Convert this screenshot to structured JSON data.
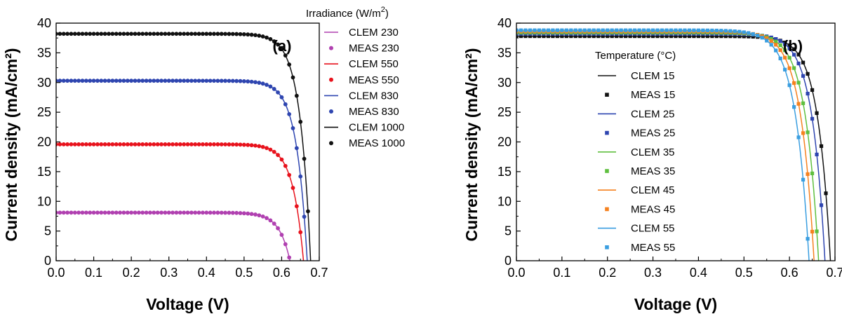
{
  "chart_data": [
    {
      "type": "scatter",
      "panel_label": "(a)",
      "xlabel": "Voltage (V)",
      "ylabel": "Current density (mA/cm²)",
      "xlim": [
        0,
        0.7
      ],
      "ylim": [
        0,
        40
      ],
      "xticks": [
        "0.0",
        "0.1",
        "0.2",
        "0.3",
        "0.4",
        "0.5",
        "0.6",
        "0.7"
      ],
      "yticks": [
        "0",
        "5",
        "10",
        "15",
        "20",
        "25",
        "30",
        "35",
        "40"
      ],
      "legend_title": "Irradiance (W/m",
      "legend_title_sup": "2",
      "legend_title_end": ")",
      "legend_position": "outside-right",
      "series": [
        {
          "name": "CLEM 230",
          "kind": "line",
          "color": "#b040b0",
          "isc": 8.1,
          "voc": 0.622,
          "k": 0.0285
        },
        {
          "name": "MEAS 230",
          "kind": "marker",
          "marker": "circle",
          "color": "#b040b0",
          "isc": 8.1,
          "voc": 0.622,
          "k": 0.0285
        },
        {
          "name": "CLEM 550",
          "kind": "line",
          "color": "#e8121c",
          "isc": 19.6,
          "voc": 0.658,
          "k": 0.0285
        },
        {
          "name": "MEAS 550",
          "kind": "marker",
          "marker": "circle",
          "color": "#e8121c",
          "isc": 19.6,
          "voc": 0.658,
          "k": 0.0285
        },
        {
          "name": "CLEM 830",
          "kind": "line",
          "color": "#2e45b0",
          "isc": 30.3,
          "voc": 0.668,
          "k": 0.0285
        },
        {
          "name": "MEAS 830",
          "kind": "marker",
          "marker": "circle",
          "color": "#2e45b0",
          "isc": 30.3,
          "voc": 0.668,
          "k": 0.0285
        },
        {
          "name": "CLEM 1000",
          "kind": "line",
          "color": "#111111",
          "isc": 38.2,
          "voc": 0.677,
          "k": 0.0285
        },
        {
          "name": "MEAS 1000",
          "kind": "marker",
          "marker": "circle",
          "color": "#111111",
          "isc": 38.2,
          "voc": 0.677,
          "k": 0.0285
        }
      ]
    },
    {
      "type": "scatter",
      "panel_label": "(b)",
      "xlabel": "Voltage (V)",
      "ylabel": "Current density (mA/cm²)",
      "xlim": [
        0,
        0.7
      ],
      "ylim": [
        0,
        40
      ],
      "xticks": [
        "0.0",
        "0.1",
        "0.2",
        "0.3",
        "0.4",
        "0.5",
        "0.6",
        "0.7"
      ],
      "yticks": [
        "0",
        "5",
        "10",
        "15",
        "20",
        "25",
        "30",
        "35",
        "40"
      ],
      "legend_title": "Temperature (°C)",
      "legend_position": "inside-left",
      "series": [
        {
          "name": "CLEM 15",
          "kind": "line",
          "color": "#111111",
          "isc": 37.8,
          "voc": 0.69,
          "k": 0.028
        },
        {
          "name": "MEAS 15",
          "kind": "marker",
          "marker": "square",
          "color": "#111111",
          "isc": 37.8,
          "voc": 0.69,
          "k": 0.028
        },
        {
          "name": "CLEM 25",
          "kind": "line",
          "color": "#2e45b0",
          "isc": 38.2,
          "voc": 0.678,
          "k": 0.0285
        },
        {
          "name": "MEAS 25",
          "kind": "marker",
          "marker": "square",
          "color": "#2e45b0",
          "isc": 38.2,
          "voc": 0.678,
          "k": 0.0285
        },
        {
          "name": "CLEM 35",
          "kind": "line",
          "color": "#5fbf3f",
          "isc": 38.4,
          "voc": 0.664,
          "k": 0.029
        },
        {
          "name": "MEAS 35",
          "kind": "marker",
          "marker": "square",
          "color": "#5fbf3f",
          "isc": 38.4,
          "voc": 0.664,
          "k": 0.029
        },
        {
          "name": "CLEM 45",
          "kind": "line",
          "color": "#f5811f",
          "isc": 38.6,
          "voc": 0.654,
          "k": 0.0295
        },
        {
          "name": "MEAS 45",
          "kind": "marker",
          "marker": "square",
          "color": "#f5811f",
          "isc": 38.6,
          "voc": 0.654,
          "k": 0.0295
        },
        {
          "name": "CLEM 55",
          "kind": "line",
          "color": "#3a9ee0",
          "isc": 38.8,
          "voc": 0.643,
          "k": 0.03
        },
        {
          "name": "MEAS 55",
          "kind": "marker",
          "marker": "square",
          "color": "#3a9ee0",
          "isc": 38.8,
          "voc": 0.643,
          "k": 0.03
        }
      ]
    }
  ]
}
